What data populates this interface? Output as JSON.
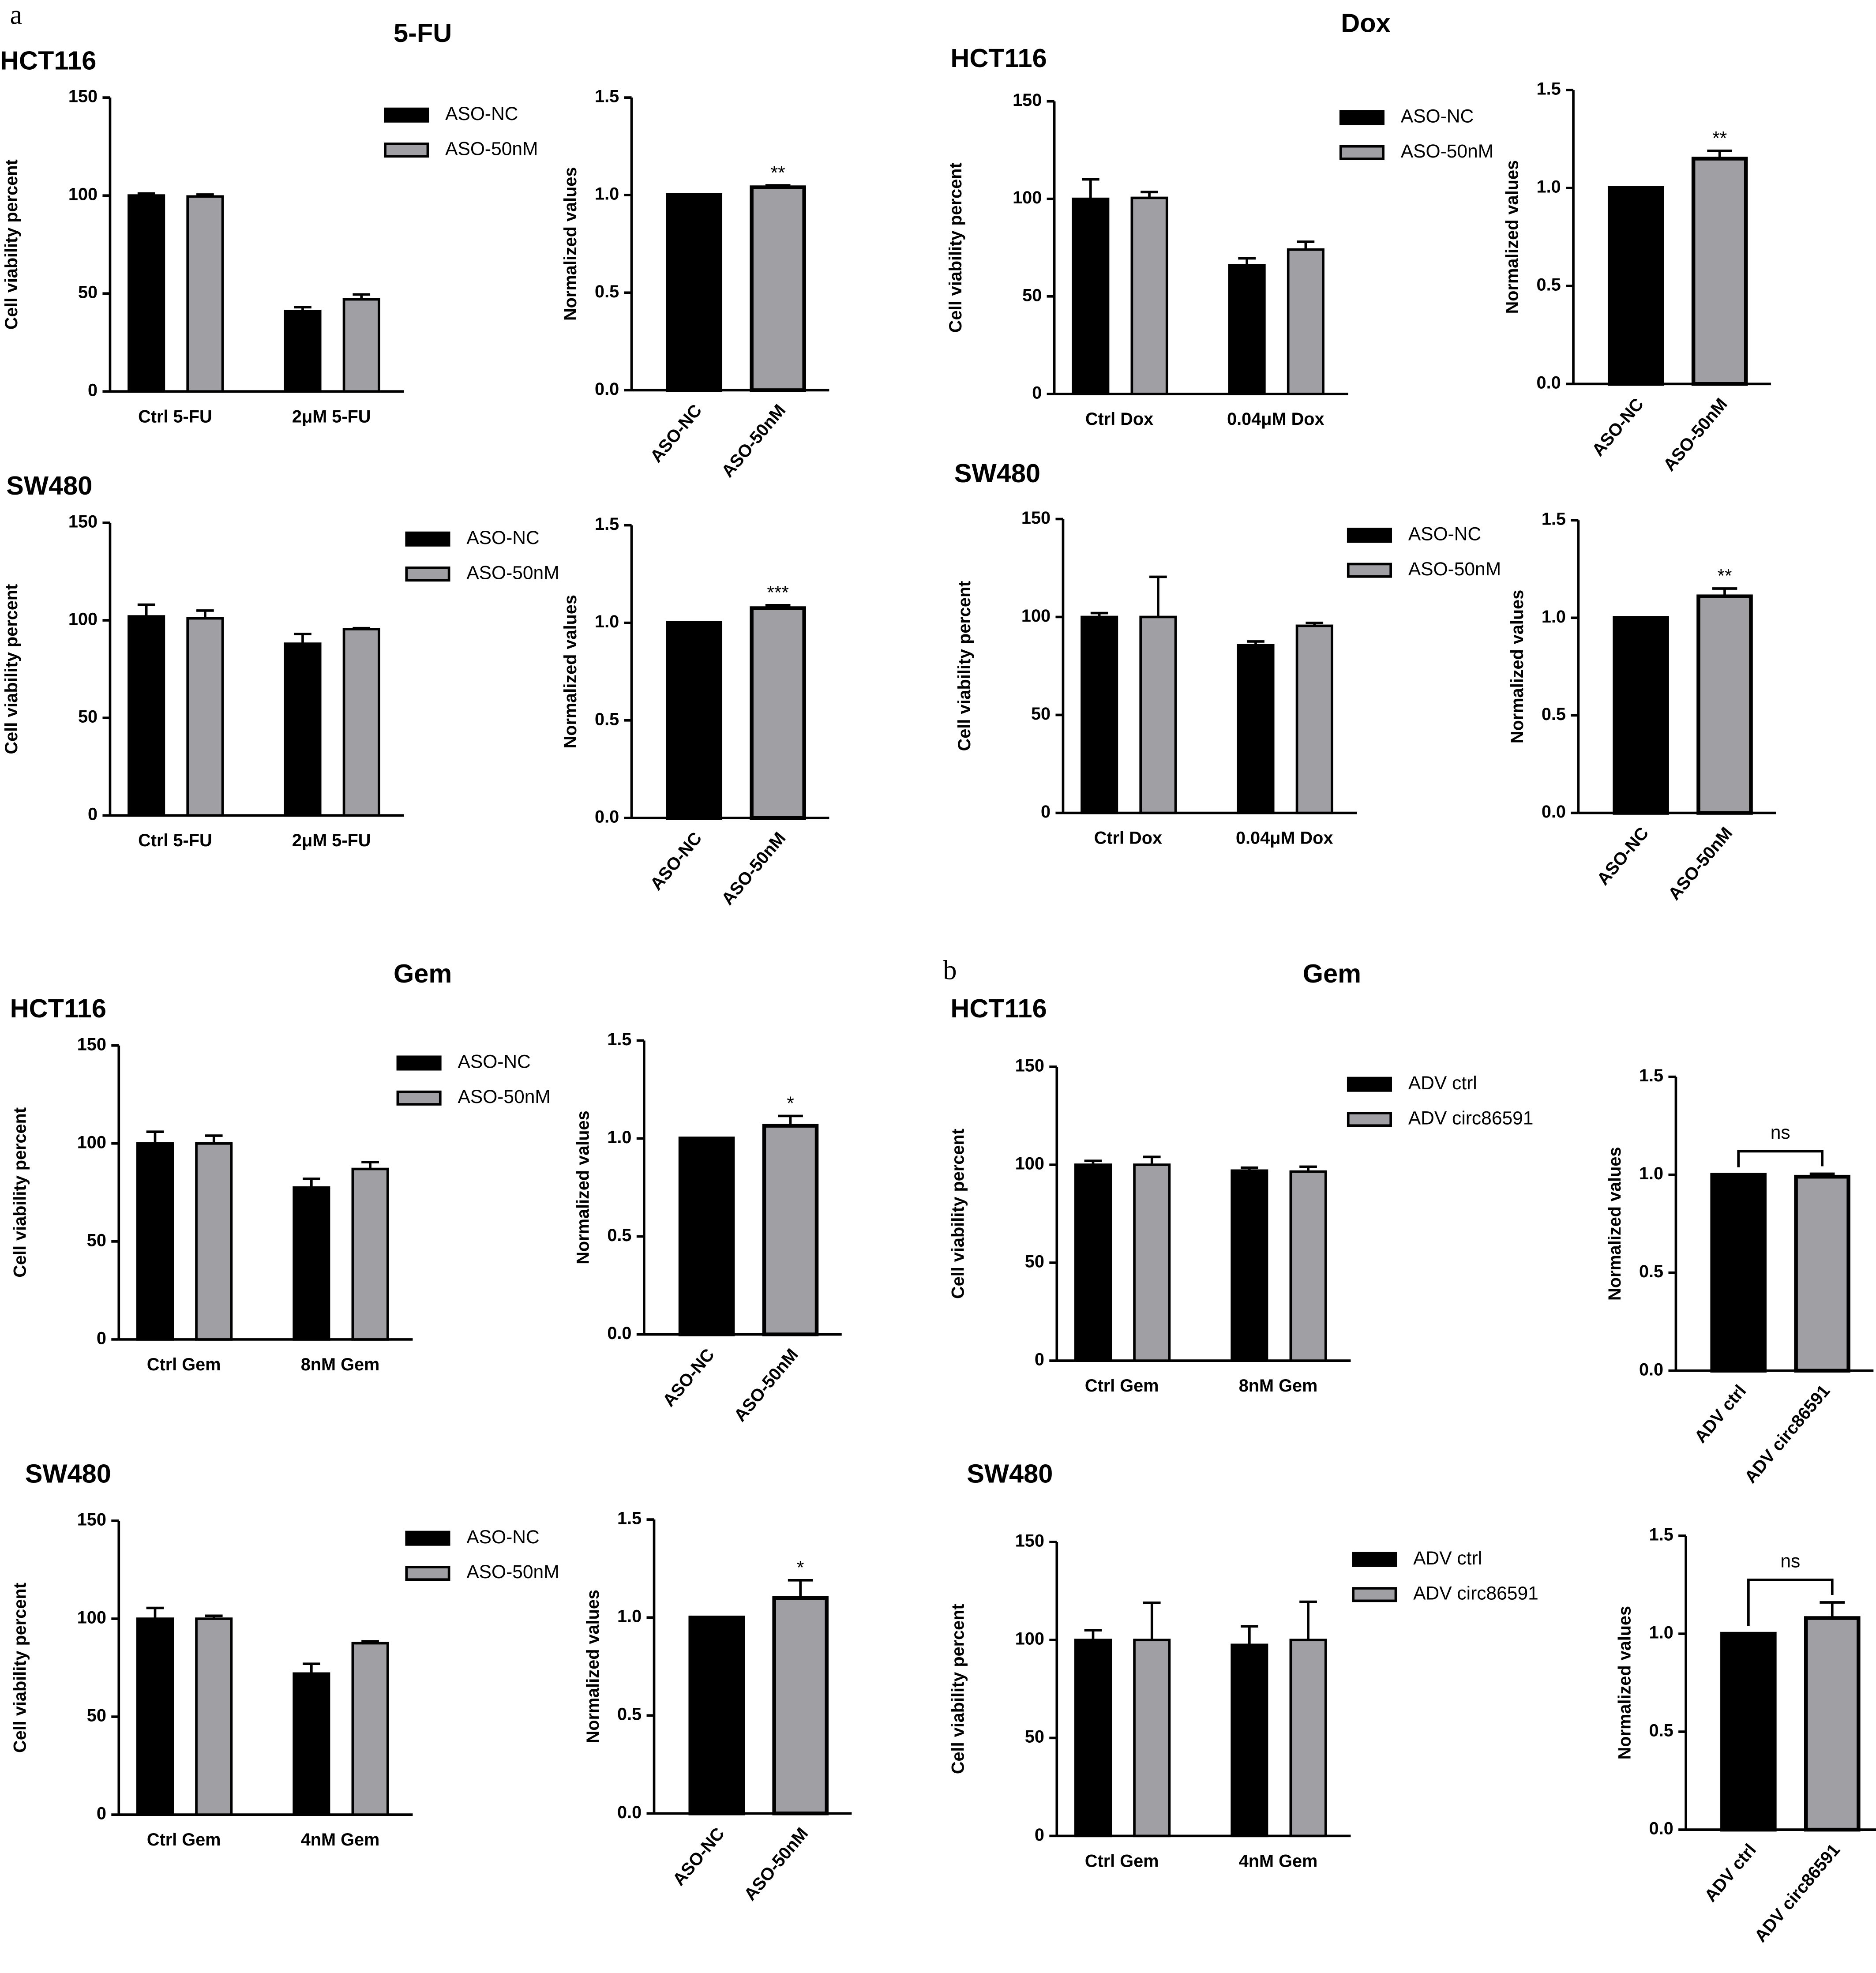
{
  "figure": {
    "panel_labels": [
      "a",
      "b"
    ],
    "sections": [
      "5-FU",
      "Dox",
      "Gem",
      "Gem"
    ]
  },
  "chart_data": [
    {
      "type": "grouped_bar",
      "title": "HCT116",
      "ylabel": "Cell viability percent",
      "categories": [
        "Ctrl 5-FU",
        "2μM 5-FU"
      ],
      "series": [
        {
          "name": "ASO-NC",
          "color": "#000000",
          "values": [
            100,
            41
          ],
          "errors": [
            1,
            2
          ]
        },
        {
          "name": "ASO-50nM",
          "color": "#a0a0a4",
          "values": [
            99.5,
            47
          ],
          "errors": [
            1,
            2.5
          ]
        }
      ],
      "ylim": [
        0,
        150
      ],
      "yticks": [
        0,
        50,
        100,
        150
      ]
    },
    {
      "type": "bar",
      "ylabel": "Normalized values",
      "categories": [
        "ASO-NC",
        "ASO-50nM"
      ],
      "values": [
        1,
        1.04
      ],
      "errors": [
        0,
        0.01
      ],
      "colors": [
        "#000000",
        "#a0a0a4"
      ],
      "annotation": "**",
      "ylim": [
        0,
        1.5
      ],
      "yticks": [
        {
          "value": 0,
          "label": "0.0"
        },
        {
          "value": 0.5,
          "label": "0.5"
        },
        {
          "value": 1,
          "label": "1.0"
        },
        {
          "value": 1.5,
          "label": "1.5"
        }
      ]
    },
    {
      "type": "grouped_bar",
      "title": "SW480",
      "ylabel": "Cell viability percent",
      "categories": [
        "Ctrl 5-FU",
        "2μM 5-FU"
      ],
      "series": [
        {
          "name": "ASO-NC",
          "color": "#000000",
          "values": [
            102,
            88
          ],
          "errors": [
            6,
            5
          ]
        },
        {
          "name": "ASO-50nM",
          "color": "#a0a0a4",
          "values": [
            101,
            95.5
          ],
          "errors": [
            4,
            0.5
          ]
        }
      ],
      "ylim": [
        0,
        150
      ],
      "yticks": [
        0,
        50,
        100,
        150
      ]
    },
    {
      "type": "bar",
      "ylabel": "Normalized values",
      "categories": [
        "ASO-NC",
        "ASO-50nM"
      ],
      "values": [
        1,
        1.075
      ],
      "errors": [
        0,
        0.015
      ],
      "colors": [
        "#000000",
        "#a0a0a4"
      ],
      "annotation": "***",
      "ylim": [
        0,
        1.5
      ],
      "yticks": [
        {
          "value": 0,
          "label": "0.0"
        },
        {
          "value": 0.5,
          "label": "0.5"
        },
        {
          "value": 1,
          "label": "1.0"
        },
        {
          "value": 1.5,
          "label": "1.5"
        }
      ]
    },
    {
      "type": "grouped_bar",
      "title": "HCT116",
      "ylabel": "Cell viability percent",
      "categories": [
        "Ctrl Dox",
        "0.04μM Dox"
      ],
      "series": [
        {
          "name": "ASO-NC",
          "color": "#000000",
          "values": [
            100,
            66
          ],
          "errors": [
            10,
            3.5
          ]
        },
        {
          "name": "ASO-50nM",
          "color": "#a0a0a4",
          "values": [
            100.5,
            74
          ],
          "errors": [
            3,
            4
          ]
        }
      ],
      "ylim": [
        0,
        150
      ],
      "yticks": [
        0,
        50,
        100,
        150
      ]
    },
    {
      "type": "bar",
      "ylabel": "Normalized values",
      "categories": [
        "ASO-NC",
        "ASO-50nM"
      ],
      "values": [
        1,
        1.15
      ],
      "errors": [
        0,
        0.04
      ],
      "colors": [
        "#000000",
        "#a0a0a4"
      ],
      "annotation": "**",
      "ylim": [
        0,
        1.5
      ],
      "yticks": [
        {
          "value": 0,
          "label": "0.0"
        },
        {
          "value": 0.5,
          "label": "0.5"
        },
        {
          "value": 1,
          "label": "1.0"
        },
        {
          "value": 1.5,
          "label": "1.5"
        }
      ]
    },
    {
      "type": "grouped_bar",
      "title": "SW480",
      "ylabel": "Cell viability percent",
      "categories": [
        "Ctrl Dox",
        "0.04μM Dox"
      ],
      "series": [
        {
          "name": "ASO-NC",
          "color": "#000000",
          "values": [
            100,
            85.5
          ],
          "errors": [
            2,
            2
          ]
        },
        {
          "name": "ASO-50nM",
          "color": "#a0a0a4",
          "values": [
            100,
            95.5
          ],
          "errors": [
            20.5,
            1.5
          ]
        }
      ],
      "ylim": [
        0,
        150
      ],
      "yticks": [
        0,
        50,
        100,
        150
      ]
    },
    {
      "type": "bar",
      "ylabel": "Normalized values",
      "categories": [
        "ASO-NC",
        "ASO-50nM"
      ],
      "values": [
        1,
        1.11
      ],
      "errors": [
        0,
        0.04
      ],
      "colors": [
        "#000000",
        "#a0a0a4"
      ],
      "annotation": "**",
      "ylim": [
        0,
        1.5
      ],
      "yticks": [
        {
          "value": 0,
          "label": "0.0"
        },
        {
          "value": 0.5,
          "label": "0.5"
        },
        {
          "value": 1,
          "label": "1.0"
        },
        {
          "value": 1.5,
          "label": "1.5"
        }
      ]
    },
    {
      "type": "grouped_bar",
      "title": "HCT116",
      "ylabel": "Cell viability percent",
      "categories": [
        "Ctrl Gem",
        "8nM Gem"
      ],
      "series": [
        {
          "name": "ASO-NC",
          "color": "#000000",
          "values": [
            100,
            77.5
          ],
          "errors": [
            6,
            4.5
          ]
        },
        {
          "name": "ASO-50nM",
          "color": "#a0a0a4",
          "values": [
            100,
            87
          ],
          "errors": [
            4,
            3.5
          ]
        }
      ],
      "ylim": [
        0,
        150
      ],
      "yticks": [
        0,
        50,
        100,
        150
      ]
    },
    {
      "type": "bar",
      "ylabel": "Normalized values",
      "categories": [
        "ASO-NC",
        "ASO-50nM"
      ],
      "values": [
        1,
        1.065
      ],
      "errors": [
        0,
        0.05
      ],
      "colors": [
        "#000000",
        "#a0a0a4"
      ],
      "annotation": "*",
      "ylim": [
        0,
        1.5
      ],
      "yticks": [
        {
          "value": 0,
          "label": "0.0"
        },
        {
          "value": 0.5,
          "label": "0.5"
        },
        {
          "value": 1,
          "label": "1.0"
        },
        {
          "value": 1.5,
          "label": "1.5"
        }
      ]
    },
    {
      "type": "grouped_bar",
      "title": "SW480",
      "ylabel": "Cell viability percent",
      "categories": [
        "Ctrl Gem",
        "4nM Gem"
      ],
      "series": [
        {
          "name": "ASO-NC",
          "color": "#000000",
          "values": [
            100,
            72
          ],
          "errors": [
            5.5,
            5
          ]
        },
        {
          "name": "ASO-50nM",
          "color": "#a0a0a4",
          "values": [
            100,
            87.5
          ],
          "errors": [
            1.5,
            1
          ]
        }
      ],
      "ylim": [
        0,
        150
      ],
      "yticks": [
        0,
        50,
        100,
        150
      ]
    },
    {
      "type": "bar",
      "ylabel": "Normalized values",
      "categories": [
        "ASO-NC",
        "ASO-50nM"
      ],
      "values": [
        1,
        1.1
      ],
      "errors": [
        0,
        0.09
      ],
      "colors": [
        "#000000",
        "#a0a0a4"
      ],
      "annotation": "*",
      "ylim": [
        0,
        1.5
      ],
      "yticks": [
        {
          "value": 0,
          "label": "0.0"
        },
        {
          "value": 0.5,
          "label": "0.5"
        },
        {
          "value": 1,
          "label": "1.0"
        },
        {
          "value": 1.5,
          "label": "1.5"
        }
      ]
    },
    {
      "type": "grouped_bar",
      "title": "HCT116",
      "ylabel": "Cell viability percent",
      "categories": [
        "Ctrl Gem",
        "8nM Gem"
      ],
      "series": [
        {
          "name": "ADV ctrl",
          "color": "#000000",
          "values": [
            100,
            97
          ],
          "errors": [
            2,
            1.5
          ]
        },
        {
          "name": "ADV circ86591",
          "color": "#a0a0a4",
          "values": [
            100,
            96.5
          ],
          "errors": [
            4,
            2.5
          ]
        }
      ],
      "ylim": [
        0,
        150
      ],
      "yticks": [
        0,
        50,
        100,
        150
      ]
    },
    {
      "type": "bar",
      "ylabel": "Normalized values",
      "categories": [
        "ADV ctrl",
        "ADV circ86591"
      ],
      "values": [
        1,
        0.99
      ],
      "errors": [
        0,
        0.015
      ],
      "colors": [
        "#000000",
        "#a0a0a4"
      ],
      "annotation": "ns",
      "bracket": true,
      "ylim": [
        0,
        1.5
      ],
      "yticks": [
        {
          "value": 0,
          "label": "0.0"
        },
        {
          "value": 0.5,
          "label": "0.5"
        },
        {
          "value": 1,
          "label": "1.0"
        },
        {
          "value": 1.5,
          "label": "1.5"
        }
      ]
    },
    {
      "type": "grouped_bar",
      "title": "SW480",
      "ylabel": "Cell viability percent",
      "categories": [
        "Ctrl Gem",
        "4nM Gem"
      ],
      "series": [
        {
          "name": "ADV ctrl",
          "color": "#000000",
          "values": [
            100,
            97.5
          ],
          "errors": [
            5,
            9.5
          ]
        },
        {
          "name": "ADV circ86591",
          "color": "#a0a0a4",
          "values": [
            100,
            100
          ],
          "errors": [
            19,
            19.5
          ]
        }
      ],
      "ylim": [
        0,
        150
      ],
      "yticks": [
        0,
        50,
        100,
        150
      ]
    },
    {
      "type": "bar",
      "ylabel": "Normalized values",
      "categories": [
        "ADV ctrl",
        "ADV circ86591"
      ],
      "values": [
        1,
        1.08
      ],
      "errors": [
        0,
        0.08
      ],
      "colors": [
        "#000000",
        "#a0a0a4"
      ],
      "annotation": "ns",
      "bracket": true,
      "ylim": [
        0,
        1.5
      ],
      "yticks": [
        {
          "value": 0,
          "label": "0.0"
        },
        {
          "value": 0.5,
          "label": "0.5"
        },
        {
          "value": 1,
          "label": "1.0"
        },
        {
          "value": 1.5,
          "label": "1.5"
        }
      ]
    }
  ]
}
